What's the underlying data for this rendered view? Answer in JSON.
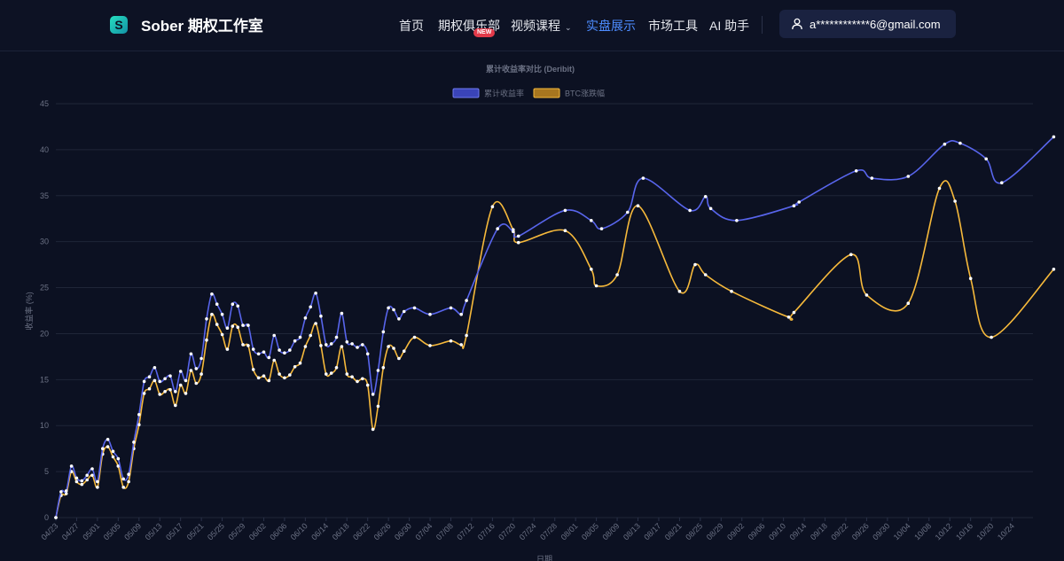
{
  "brand": {
    "logo_letter": "S",
    "name": "Sober 期权工作室",
    "accent": "#26e0c0"
  },
  "nav": {
    "items": [
      {
        "label": "首页"
      },
      {
        "label": "期权俱乐部",
        "badge": "NEW"
      },
      {
        "label": "视频课程",
        "dropdown": true
      },
      {
        "label": "实盘展示",
        "active": true
      },
      {
        "label": "市场工具"
      },
      {
        "label": "AI 助手"
      }
    ],
    "active_color": "#4d8cff"
  },
  "user": {
    "icon": "user-icon",
    "email": "a************6@gmail.com"
  },
  "chart_data": {
    "type": "line",
    "title": "累计收益率对比 (Deribit)",
    "xlabel": "日期",
    "ylabel": "收益率 (%)",
    "ylim": [
      0,
      45
    ],
    "yticks": [
      0,
      5,
      10,
      15,
      20,
      25,
      30,
      35,
      40,
      45
    ],
    "grid": true,
    "legend_position": "top-center",
    "xrange": [
      "2025-04-23",
      "2025-10-28"
    ],
    "xticks": [
      "04/23",
      "04/27",
      "05/01",
      "05/05",
      "05/09",
      "05/13",
      "05/17",
      "05/21",
      "05/25",
      "05/29",
      "06/02",
      "06/06",
      "06/10",
      "06/14",
      "06/18",
      "06/22",
      "06/26",
      "06/30",
      "07/04",
      "07/08",
      "07/12",
      "07/16",
      "07/20",
      "07/24",
      "07/28",
      "08/01",
      "08/05",
      "08/09",
      "08/13",
      "08/17",
      "08/21",
      "08/25",
      "08/29",
      "09/02",
      "09/06",
      "09/10",
      "09/14",
      "09/18",
      "09/22",
      "09/26",
      "09/30",
      "10/04",
      "10/08",
      "10/12",
      "10/16",
      "10/20",
      "10/24"
    ],
    "series": [
      {
        "name": "累计收益率",
        "color": "#5865ec",
        "points": [
          [
            "2025-04-23",
            0
          ],
          [
            "2025-04-24",
            2.8
          ],
          [
            "2025-04-25",
            2.9
          ],
          [
            "2025-04-26",
            5.6
          ],
          [
            "2025-04-27",
            4.3
          ],
          [
            "2025-04-28",
            4.0
          ],
          [
            "2025-04-29",
            4.6
          ],
          [
            "2025-04-30",
            5.3
          ],
          [
            "2025-05-01",
            3.9
          ],
          [
            "2025-05-02",
            7.5
          ],
          [
            "2025-05-03",
            8.5
          ],
          [
            "2025-05-04",
            7.2
          ],
          [
            "2025-05-05",
            6.4
          ],
          [
            "2025-05-06",
            4.2
          ],
          [
            "2025-05-07",
            4.7
          ],
          [
            "2025-05-08",
            8.2
          ],
          [
            "2025-05-09",
            11.2
          ],
          [
            "2025-05-10",
            14.8
          ],
          [
            "2025-05-11",
            15.3
          ],
          [
            "2025-05-12",
            16.3
          ],
          [
            "2025-05-13",
            14.8
          ],
          [
            "2025-05-14",
            15.1
          ],
          [
            "2025-05-15",
            15.4
          ],
          [
            "2025-05-16",
            13.7
          ],
          [
            "2025-05-17",
            15.9
          ],
          [
            "2025-05-18",
            14.9
          ],
          [
            "2025-05-19",
            17.8
          ],
          [
            "2025-05-20",
            16.2
          ],
          [
            "2025-05-21",
            17.3
          ],
          [
            "2025-05-22",
            21.6
          ],
          [
            "2025-05-23",
            24.3
          ],
          [
            "2025-05-24",
            23.2
          ],
          [
            "2025-05-25",
            22.1
          ],
          [
            "2025-05-26",
            20.6
          ],
          [
            "2025-05-27",
            23.2
          ],
          [
            "2025-05-28",
            23.0
          ],
          [
            "2025-05-29",
            20.9
          ],
          [
            "2025-05-30",
            20.9
          ],
          [
            "2025-05-31",
            18.3
          ],
          [
            "2025-06-01",
            17.8
          ],
          [
            "2025-06-02",
            18.0
          ],
          [
            "2025-06-03",
            17.4
          ],
          [
            "2025-06-04",
            19.8
          ],
          [
            "2025-06-05",
            18.2
          ],
          [
            "2025-06-06",
            17.9
          ],
          [
            "2025-06-07",
            18.2
          ],
          [
            "2025-06-08",
            19.2
          ],
          [
            "2025-06-09",
            19.6
          ],
          [
            "2025-06-10",
            21.7
          ],
          [
            "2025-06-11",
            22.9
          ],
          [
            "2025-06-12",
            24.4
          ],
          [
            "2025-06-13",
            21.9
          ],
          [
            "2025-06-14",
            18.8
          ],
          [
            "2025-06-15",
            18.9
          ],
          [
            "2025-06-16",
            19.6
          ],
          [
            "2025-06-17",
            22.2
          ],
          [
            "2025-06-18",
            19.1
          ],
          [
            "2025-06-19",
            18.9
          ],
          [
            "2025-06-20",
            18.5
          ],
          [
            "2025-06-21",
            18.8
          ],
          [
            "2025-06-22",
            17.8
          ],
          [
            "2025-06-23",
            13.4
          ],
          [
            "2025-06-24",
            16.0
          ],
          [
            "2025-06-25",
            20.2
          ],
          [
            "2025-06-26",
            22.8
          ],
          [
            "2025-06-27",
            22.6
          ],
          [
            "2025-06-28",
            21.6
          ],
          [
            "2025-06-29",
            22.4
          ],
          [
            "2025-07-01",
            22.8
          ],
          [
            "2025-07-04",
            22.1
          ],
          [
            "2025-07-08",
            22.8
          ],
          [
            "2025-07-10",
            22.1
          ],
          [
            "2025-07-11",
            23.6
          ],
          [
            "2025-07-17",
            31.4
          ],
          [
            "2025-07-20",
            31.1
          ],
          [
            "2025-07-21",
            30.6
          ],
          [
            "2025-07-30",
            33.4
          ],
          [
            "2025-08-04",
            32.3
          ],
          [
            "2025-08-06",
            31.4
          ],
          [
            "2025-08-11",
            33.2
          ],
          [
            "2025-08-14",
            36.9
          ],
          [
            "2025-08-23",
            33.4
          ],
          [
            "2025-08-26",
            34.9
          ],
          [
            "2025-08-27",
            33.6
          ],
          [
            "2025-09-01",
            32.3
          ],
          [
            "2025-09-12",
            33.9
          ],
          [
            "2025-09-13",
            34.3
          ],
          [
            "2025-09-24",
            37.7
          ],
          [
            "2025-09-27",
            36.9
          ],
          [
            "2025-10-04",
            37.1
          ],
          [
            "2025-10-11",
            40.6
          ],
          [
            "2025-10-14",
            40.7
          ],
          [
            "2025-10-19",
            39.0
          ],
          [
            "2025-10-22",
            36.4
          ],
          [
            "2025-11-01",
            41.4
          ]
        ]
      },
      {
        "name": "BTC涨跌幅",
        "color": "#f6b93b",
        "points": [
          [
            "2025-04-23",
            0
          ],
          [
            "2025-04-24",
            2.4
          ],
          [
            "2025-04-25",
            2.6
          ],
          [
            "2025-04-26",
            5.0
          ],
          [
            "2025-04-27",
            3.9
          ],
          [
            "2025-04-28",
            3.6
          ],
          [
            "2025-04-29",
            4.1
          ],
          [
            "2025-04-30",
            4.6
          ],
          [
            "2025-05-01",
            3.3
          ],
          [
            "2025-05-02",
            6.9
          ],
          [
            "2025-05-03",
            7.7
          ],
          [
            "2025-05-04",
            6.6
          ],
          [
            "2025-05-05",
            5.6
          ],
          [
            "2025-05-06",
            3.3
          ],
          [
            "2025-05-07",
            3.9
          ],
          [
            "2025-05-08",
            7.5
          ],
          [
            "2025-05-09",
            10.1
          ],
          [
            "2025-05-10",
            13.5
          ],
          [
            "2025-05-11",
            14.0
          ],
          [
            "2025-05-12",
            14.9
          ],
          [
            "2025-05-13",
            13.4
          ],
          [
            "2025-05-14",
            13.7
          ],
          [
            "2025-05-15",
            13.9
          ],
          [
            "2025-05-16",
            12.2
          ],
          [
            "2025-05-17",
            14.4
          ],
          [
            "2025-05-18",
            13.5
          ],
          [
            "2025-05-19",
            16.0
          ],
          [
            "2025-05-20",
            14.6
          ],
          [
            "2025-05-21",
            15.6
          ],
          [
            "2025-05-22",
            19.3
          ],
          [
            "2025-05-23",
            22.1
          ],
          [
            "2025-05-24",
            21.0
          ],
          [
            "2025-05-25",
            19.9
          ],
          [
            "2025-05-26",
            18.3
          ],
          [
            "2025-05-27",
            20.8
          ],
          [
            "2025-05-28",
            20.7
          ],
          [
            "2025-05-29",
            18.8
          ],
          [
            "2025-05-30",
            18.7
          ],
          [
            "2025-05-31",
            16.1
          ],
          [
            "2025-06-01",
            15.2
          ],
          [
            "2025-06-02",
            15.4
          ],
          [
            "2025-06-03",
            14.9
          ],
          [
            "2025-06-04",
            17.1
          ],
          [
            "2025-06-05",
            15.6
          ],
          [
            "2025-06-06",
            15.2
          ],
          [
            "2025-06-07",
            15.5
          ],
          [
            "2025-06-08",
            16.4
          ],
          [
            "2025-06-09",
            16.8
          ],
          [
            "2025-06-10",
            18.6
          ],
          [
            "2025-06-11",
            19.8
          ],
          [
            "2025-06-12",
            21.1
          ],
          [
            "2025-06-13",
            18.7
          ],
          [
            "2025-06-14",
            15.6
          ],
          [
            "2025-06-15",
            15.7
          ],
          [
            "2025-06-16",
            16.3
          ],
          [
            "2025-06-17",
            18.6
          ],
          [
            "2025-06-18",
            15.6
          ],
          [
            "2025-06-19",
            15.3
          ],
          [
            "2025-06-20",
            14.8
          ],
          [
            "2025-06-21",
            15.1
          ],
          [
            "2025-06-22",
            14.4
          ],
          [
            "2025-06-23",
            9.6
          ],
          [
            "2025-06-24",
            12.1
          ],
          [
            "2025-06-25",
            16.3
          ],
          [
            "2025-06-26",
            18.6
          ],
          [
            "2025-06-27",
            18.4
          ],
          [
            "2025-06-28",
            17.3
          ],
          [
            "2025-06-29",
            18.1
          ],
          [
            "2025-07-01",
            19.6
          ],
          [
            "2025-07-04",
            18.7
          ],
          [
            "2025-07-08",
            19.2
          ],
          [
            "2025-07-10",
            18.8
          ],
          [
            "2025-07-11",
            19.8
          ],
          [
            "2025-07-16",
            33.8
          ],
          [
            "2025-07-20",
            31.3
          ],
          [
            "2025-07-21",
            29.9
          ],
          [
            "2025-07-30",
            31.2
          ],
          [
            "2025-08-04",
            27.0
          ],
          [
            "2025-08-05",
            25.2
          ],
          [
            "2025-08-09",
            26.4
          ],
          [
            "2025-08-13",
            33.9
          ],
          [
            "2025-08-21",
            24.6
          ],
          [
            "2025-08-24",
            27.5
          ],
          [
            "2025-08-26",
            26.4
          ],
          [
            "2025-08-31",
            24.6
          ],
          [
            "2025-09-11",
            21.8
          ],
          [
            "2025-09-12",
            22.3
          ],
          [
            "2025-09-23",
            28.6
          ],
          [
            "2025-09-26",
            24.2
          ],
          [
            "2025-10-04",
            23.3
          ],
          [
            "2025-10-10",
            35.8
          ],
          [
            "2025-10-13",
            34.4
          ],
          [
            "2025-10-16",
            26.0
          ],
          [
            "2025-10-20",
            19.6
          ],
          [
            "2025-11-01",
            27.0
          ]
        ]
      }
    ]
  }
}
